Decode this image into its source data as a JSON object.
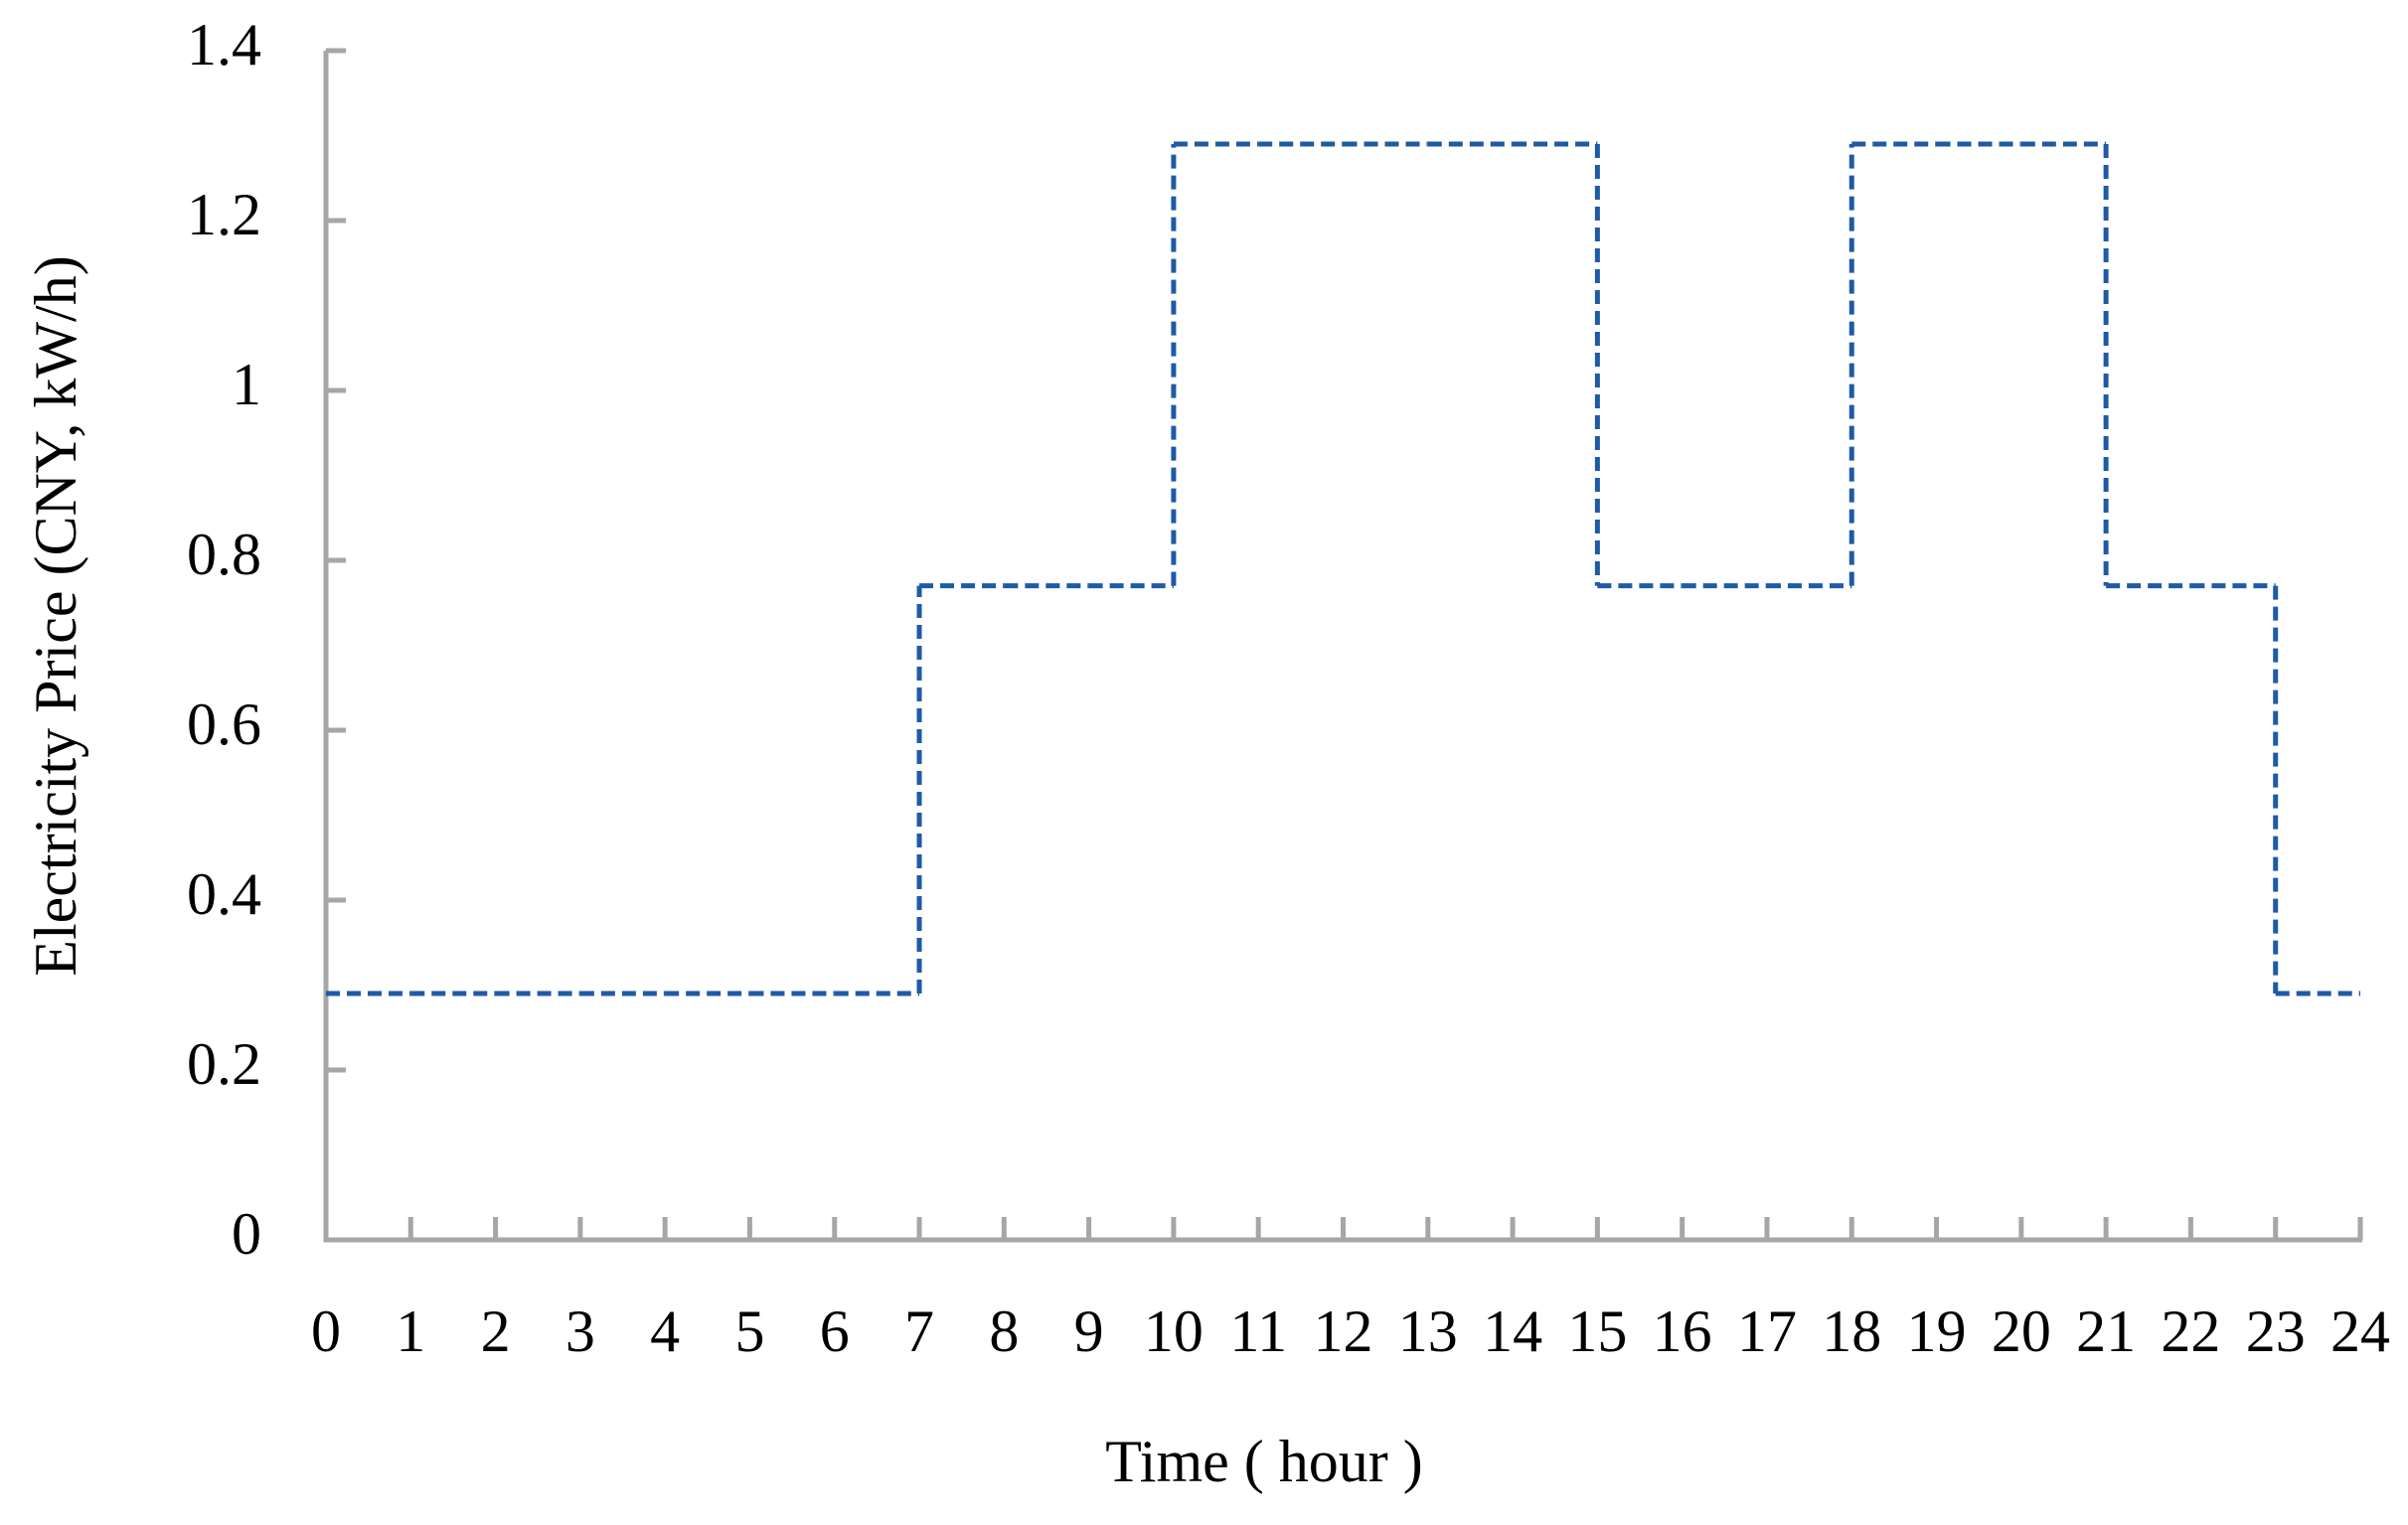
{
  "chart_data": {
    "type": "step",
    "x_label": "Time ( hour )",
    "y_label": "Electricity Price (CNY, kW/h)",
    "x": [
      0,
      1,
      2,
      3,
      4,
      5,
      6,
      7,
      8,
      9,
      10,
      11,
      12,
      13,
      14,
      15,
      16,
      17,
      18,
      19,
      20,
      21,
      22,
      23
    ],
    "values": [
      0.29,
      0.29,
      0.29,
      0.29,
      0.29,
      0.29,
      0.29,
      0.77,
      0.77,
      0.77,
      1.29,
      1.29,
      1.29,
      1.29,
      1.29,
      0.77,
      0.77,
      0.77,
      1.29,
      1.29,
      1.29,
      0.77,
      0.77,
      0.29
    ],
    "color": "#1f5aa6",
    "xlim": [
      0,
      24
    ],
    "xticks": [
      0,
      1,
      2,
      3,
      4,
      5,
      6,
      7,
      8,
      9,
      10,
      11,
      12,
      13,
      14,
      15,
      16,
      17,
      18,
      19,
      20,
      21,
      22,
      23,
      24
    ],
    "ylim": [
      0,
      1.4
    ],
    "yticks": [
      0,
      0.2,
      0.4,
      0.6,
      0.8,
      1,
      1.2,
      1.4
    ],
    "grid": false
  }
}
